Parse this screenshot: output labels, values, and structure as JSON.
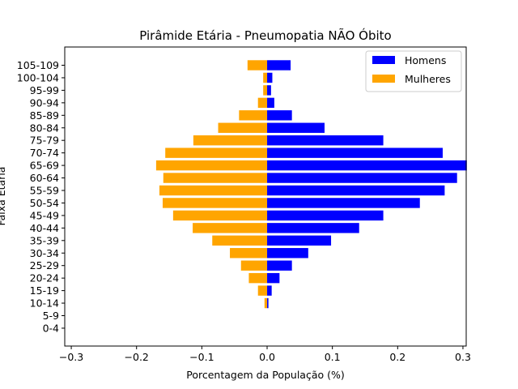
{
  "chart_data": {
    "type": "bar",
    "orientation": "horizontal",
    "title": "Pirâmide Etária - Pneumopatia NÃO Óbito",
    "xlabel": "Porcentagem da População (%)",
    "ylabel": "Faixa Etária",
    "xlim": [
      -0.31,
      0.305
    ],
    "xticks": [
      -0.3,
      -0.2,
      -0.1,
      0.0,
      0.1,
      0.2,
      0.3
    ],
    "xtick_labels": [
      "−0.3",
      "−0.2",
      "−0.1",
      "0.0",
      "0.1",
      "0.2",
      "0.3"
    ],
    "categories": [
      "0-4",
      "5-9",
      "10-14",
      "15-19",
      "20-24",
      "25-29",
      "30-34",
      "35-39",
      "40-44",
      "45-49",
      "50-54",
      "55-59",
      "60-64",
      "65-69",
      "70-74",
      "75-79",
      "80-84",
      "85-89",
      "90-94",
      "95-99",
      "100-104",
      "105-109"
    ],
    "series": [
      {
        "name": "Homens",
        "color": "#0000ff",
        "values": [
          0.0,
          0.0,
          0.002,
          0.007,
          0.019,
          0.038,
          0.063,
          0.098,
          0.141,
          0.178,
          0.234,
          0.272,
          0.291,
          0.306,
          0.269,
          0.178,
          0.088,
          0.038,
          0.011,
          0.006,
          0.008,
          0.036
        ]
      },
      {
        "name": "Mulheres",
        "color": "#ffa500",
        "values": [
          0.0,
          0.0,
          -0.004,
          -0.014,
          -0.028,
          -0.04,
          -0.057,
          -0.084,
          -0.114,
          -0.144,
          -0.16,
          -0.165,
          -0.159,
          -0.17,
          -0.156,
          -0.113,
          -0.075,
          -0.043,
          -0.014,
          -0.006,
          -0.006,
          -0.03
        ]
      }
    ],
    "grid": false,
    "legend": "upper right"
  }
}
